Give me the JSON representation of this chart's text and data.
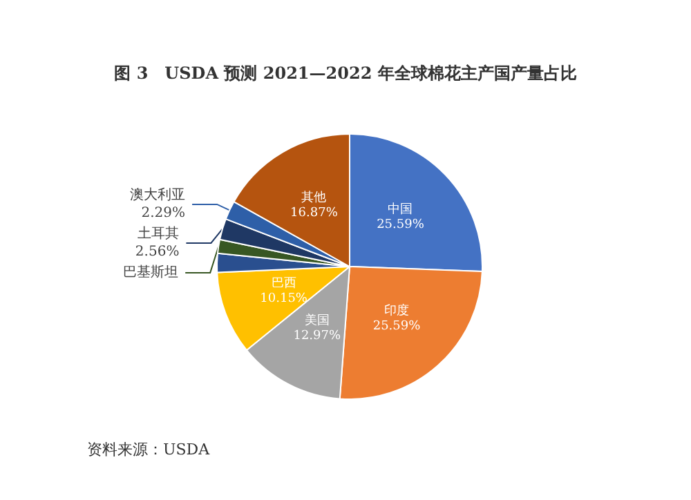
{
  "chart_data": {
    "type": "pie",
    "title": "图 3　USDA 预测 2021—2022 年全球棉花主产国产量占比",
    "categories": [
      "中国",
      "印度",
      "美国",
      "巴西",
      null,
      "巴基斯坦",
      "土耳其",
      "澳大利亚",
      "其他"
    ],
    "values": [
      25.59,
      25.59,
      12.97,
      10.15,
      2.3,
      1.68,
      2.56,
      2.29,
      16.87
    ],
    "value_labels": [
      "25.59%",
      "25.59%",
      "12.97%",
      "10.15%",
      null,
      null,
      "2.56%",
      "2.29%",
      "16.87%"
    ],
    "colors": [
      "#4472c4",
      "#ed7d31",
      "#a5a5a5",
      "#ffc000",
      "#2a4f8f",
      "#385723",
      "#1f3864",
      "#2e5fa8",
      "#b5540f"
    ],
    "annotations": [
      "资料来源：USDA"
    ]
  }
}
